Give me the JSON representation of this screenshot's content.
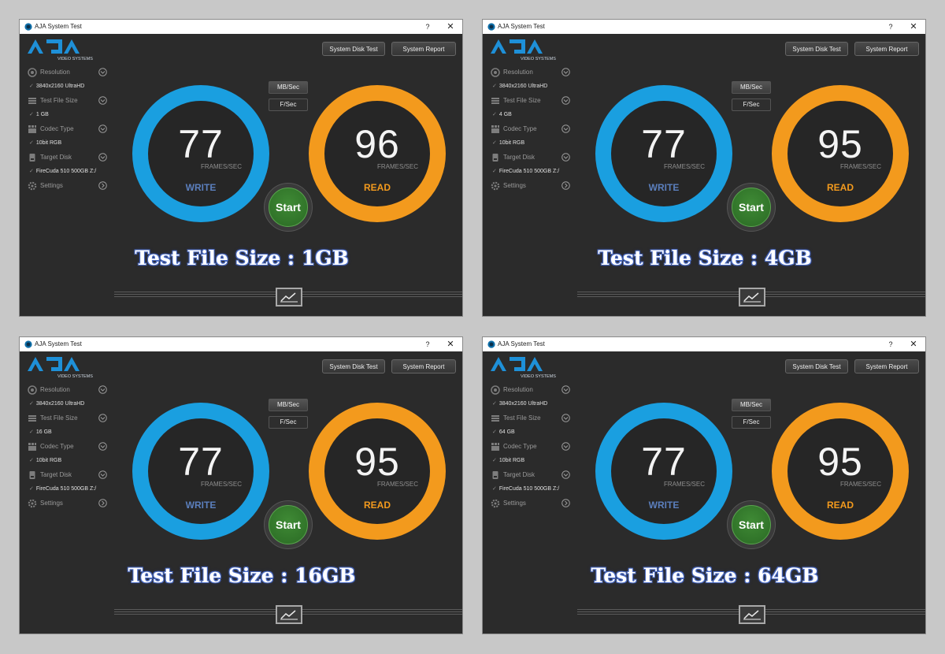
{
  "windows": [
    {
      "title": "AJA System Test",
      "help_label": "?",
      "close_label": "✕",
      "logo_text": "AJA",
      "logo_sub": "VIDEO SYSTEMS",
      "system_disk_test_label": "System Disk Test",
      "system_report_label": "System Report",
      "sidebar": {
        "resolution_label": "Resolution",
        "resolution_value": "3840x2160 UltraHD",
        "file_size_label": "Test File Size",
        "file_size_value": "1 GB",
        "codec_label": "Codec Type",
        "codec_value": "10bit RGB",
        "disk_label": "Target Disk",
        "disk_value": "FireCuda 510 500GB Z:/",
        "settings_label": "Settings"
      },
      "unit_mb_label": "MB/Sec",
      "unit_fs_label": "F/Sec",
      "write_value": "77",
      "write_unit": "FRAMES/SEC",
      "write_label": "WRITE",
      "read_value": "96",
      "read_unit": "FRAMES/SEC",
      "read_label": "READ",
      "start_label": "Start",
      "caption": "Test File Size : 1GB"
    },
    {
      "title": "AJA System Test",
      "help_label": "?",
      "close_label": "✕",
      "logo_text": "AJA",
      "logo_sub": "VIDEO SYSTEMS",
      "system_disk_test_label": "System Disk Test",
      "system_report_label": "System Report",
      "sidebar": {
        "resolution_label": "Resolution",
        "resolution_value": "3840x2160 UltraHD",
        "file_size_label": "Test File Size",
        "file_size_value": "4 GB",
        "codec_label": "Codec Type",
        "codec_value": "10bit RGB",
        "disk_label": "Target Disk",
        "disk_value": "FireCuda 510 500GB Z:/",
        "settings_label": "Settings"
      },
      "unit_mb_label": "MB/Sec",
      "unit_fs_label": "F/Sec",
      "write_value": "77",
      "write_unit": "FRAMES/SEC",
      "write_label": "WRITE",
      "read_value": "95",
      "read_unit": "FRAMES/SEC",
      "read_label": "READ",
      "start_label": "Start",
      "caption": "Test File Size : 4GB"
    },
    {
      "title": "AJA System Test",
      "help_label": "?",
      "close_label": "✕",
      "logo_text": "AJA",
      "logo_sub": "VIDEO SYSTEMS",
      "system_disk_test_label": "System Disk Test",
      "system_report_label": "System Report",
      "sidebar": {
        "resolution_label": "Resolution",
        "resolution_value": "3840x2160 UltraHD",
        "file_size_label": "Test File Size",
        "file_size_value": "16 GB",
        "codec_label": "Codec Type",
        "codec_value": "10bit RGB",
        "disk_label": "Target Disk",
        "disk_value": "FireCuda 510 500GB Z:/",
        "settings_label": "Settings"
      },
      "unit_mb_label": "MB/Sec",
      "unit_fs_label": "F/Sec",
      "write_value": "77",
      "write_unit": "FRAMES/SEC",
      "write_label": "WRITE",
      "read_value": "95",
      "read_unit": "FRAMES/SEC",
      "read_label": "READ",
      "start_label": "Start",
      "caption": "Test File Size : 16GB"
    },
    {
      "title": "AJA System Test",
      "help_label": "?",
      "close_label": "✕",
      "logo_text": "AJA",
      "logo_sub": "VIDEO SYSTEMS",
      "system_disk_test_label": "System Disk Test",
      "system_report_label": "System Report",
      "sidebar": {
        "resolution_label": "Resolution",
        "resolution_value": "3840x2160 UltraHD",
        "file_size_label": "Test File Size",
        "file_size_value": "64 GB",
        "codec_label": "Codec Type",
        "codec_value": "10bit RGB",
        "disk_label": "Target Disk",
        "disk_value": "FireCuda 510 500GB Z:/",
        "settings_label": "Settings"
      },
      "unit_mb_label": "MB/Sec",
      "unit_fs_label": "F/Sec",
      "write_value": "77",
      "write_unit": "FRAMES/SEC",
      "write_label": "WRITE",
      "read_value": "95",
      "read_unit": "FRAMES/SEC",
      "read_label": "READ",
      "start_label": "Start",
      "caption": "Test File Size : 64GB"
    }
  ],
  "colors": {
    "write_ring": "#1a9fe0",
    "read_ring": "#f39a1d",
    "start_green": "#2f7a28",
    "window_bg": "#2b2b2b",
    "caption_outline": "#4a6bc4"
  },
  "icons": {
    "sidebar": [
      "aperture-icon",
      "stack-icon",
      "grid-icon",
      "disk-icon",
      "gear-icon"
    ],
    "chevron": "chevron-circle-icon",
    "graph": "line-graph-icon"
  }
}
